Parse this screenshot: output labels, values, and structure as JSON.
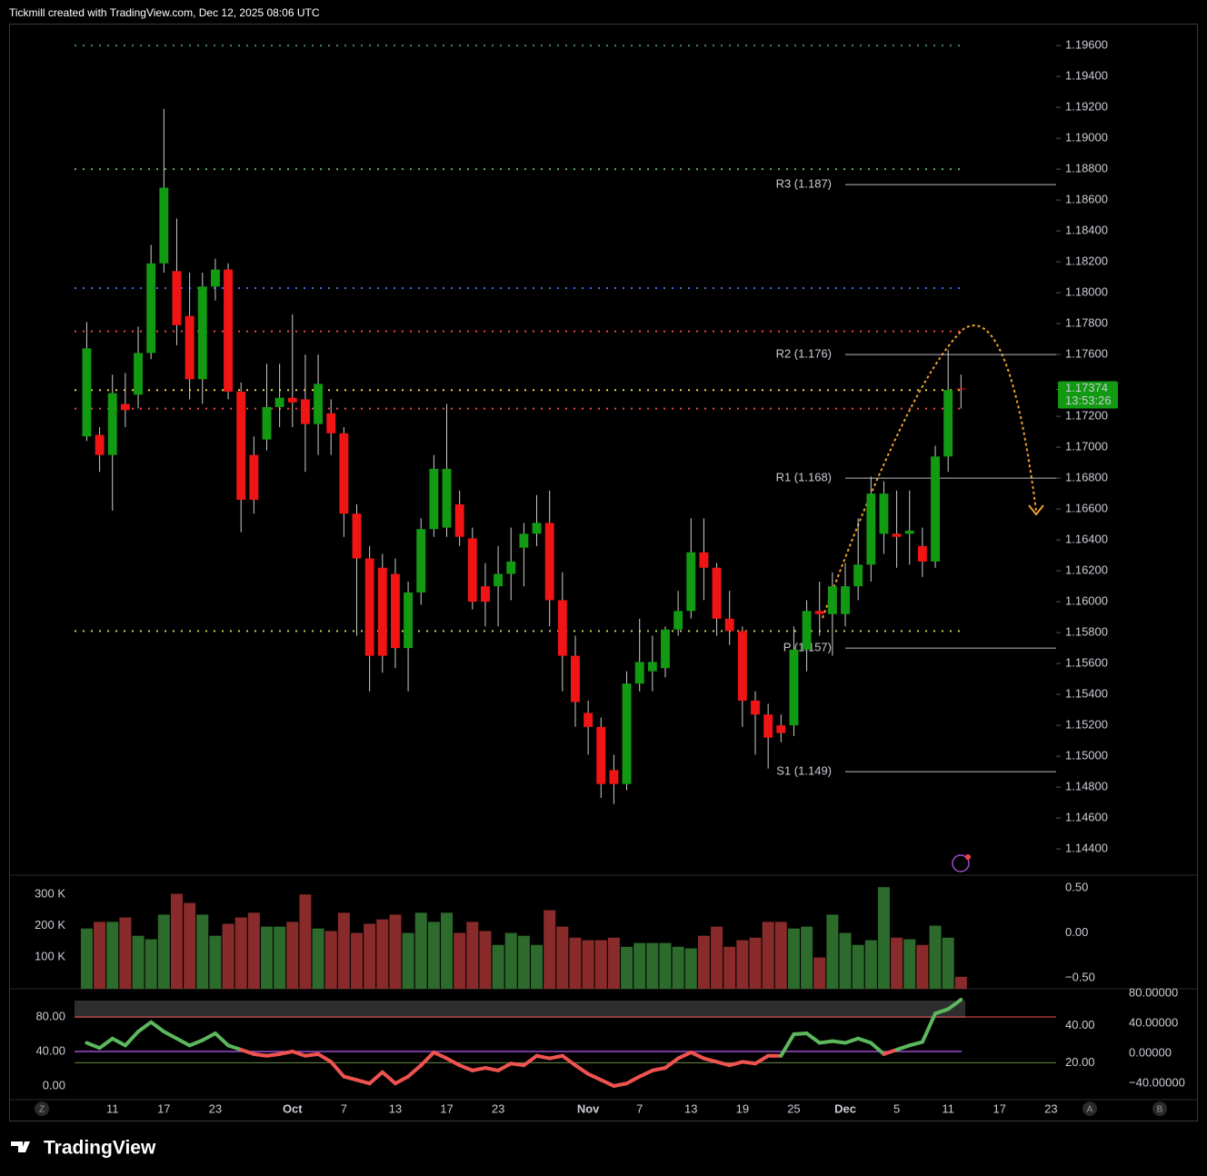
{
  "chart_data": {
    "type": "candlestick",
    "header": "Tickmill created with TradingView.com, Dec 12, 2025 08:06 UTC",
    "brand": "TradingView",
    "buttons": [
      "Z",
      "A",
      "B"
    ],
    "up_color": "#129a12",
    "down_color": "#f01414",
    "open": [
      1.1707,
      1.1708,
      1.1695,
      1.1728,
      1.1734,
      1.1761,
      1.1819,
      1.1814,
      1.1785,
      1.1744,
      1.1804,
      1.1815,
      1.1736,
      1.1695,
      1.1705,
      1.1726,
      1.1732,
      1.1731,
      1.1715,
      1.1722,
      1.1709,
      1.1657,
      1.1628,
      1.1622,
      1.1618,
      1.157,
      1.1606,
      1.1647,
      1.1648,
      1.1663,
      1.1641,
      1.161,
      1.161,
      1.1618,
      1.1635,
      1.1644,
      1.1651,
      1.1601,
      1.1565,
      1.1528,
      1.1519,
      1.1491,
      1.1482,
      1.1547,
      1.1555,
      1.1557,
      1.1582,
      1.1594,
      1.1632,
      1.1622,
      1.1589,
      1.1581,
      1.1536,
      1.1527,
      1.152,
      1.152,
      1.1569,
      1.1594,
      1.1592,
      1.1592,
      1.161,
      1.1624,
      1.1644,
      1.1644,
      1.1644,
      1.1636,
      1.1626,
      1.1694,
      1.1738
    ],
    "high": [
      1.1781,
      1.1713,
      1.1747,
      1.1748,
      1.1778,
      1.1831,
      1.1919,
      1.1848,
      1.1813,
      1.1813,
      1.1822,
      1.1819,
      1.1742,
      1.1707,
      1.1754,
      1.1754,
      1.1786,
      1.176,
      1.176,
      1.1731,
      1.1713,
      1.1663,
      1.1636,
      1.1631,
      1.1628,
      1.1613,
      1.1654,
      1.1695,
      1.1728,
      1.1672,
      1.1648,
      1.1625,
      1.1636,
      1.1648,
      1.1651,
      1.1669,
      1.1672,
      1.1619,
      1.1578,
      1.1536,
      1.1525,
      1.1501,
      1.1555,
      1.1589,
      1.1578,
      1.1584,
      1.1607,
      1.1654,
      1.1654,
      1.1625,
      1.1607,
      1.1584,
      1.1542,
      1.1534,
      1.1527,
      1.1584,
      1.1601,
      1.1613,
      1.1619,
      1.1625,
      1.1654,
      1.1681,
      1.1678,
      1.1672,
      1.1672,
      1.1648,
      1.1701,
      1.1763,
      1.1747
    ],
    "low": [
      1.1704,
      1.1684,
      1.1659,
      1.1713,
      1.1725,
      1.1757,
      1.1813,
      1.1766,
      1.1731,
      1.1728,
      1.1795,
      1.1731,
      1.1645,
      1.1657,
      1.1698,
      1.1713,
      1.1713,
      1.1684,
      1.1695,
      1.1695,
      1.1642,
      1.1578,
      1.1542,
      1.1554,
      1.1557,
      1.1542,
      1.1598,
      1.1642,
      1.1642,
      1.1636,
      1.1595,
      1.1584,
      1.1584,
      1.1601,
      1.161,
      1.1636,
      1.1584,
      1.1542,
      1.1519,
      1.1501,
      1.1473,
      1.1469,
      1.1478,
      1.1542,
      1.1542,
      1.1551,
      1.1578,
      1.1589,
      1.1601,
      1.1578,
      1.1572,
      1.1519,
      1.1501,
      1.1492,
      1.1509,
      1.1513,
      1.1555,
      1.1578,
      1.1565,
      1.1584,
      1.1601,
      1.1613,
      1.1631,
      1.1622,
      1.1624,
      1.1616,
      1.1622,
      1.1684,
      1.1725
    ],
    "close": [
      1.1764,
      1.1695,
      1.1735,
      1.1724,
      1.1761,
      1.1819,
      1.1868,
      1.1779,
      1.1744,
      1.1804,
      1.1815,
      1.1736,
      1.1666,
      1.1666,
      1.1726,
      1.1732,
      1.1729,
      1.1715,
      1.1741,
      1.1709,
      1.1657,
      1.1628,
      1.1565,
      1.1565,
      1.157,
      1.1606,
      1.1647,
      1.1686,
      1.1686,
      1.1642,
      1.16,
      1.16,
      1.1618,
      1.1626,
      1.1644,
      1.1651,
      1.1601,
      1.1565,
      1.1535,
      1.1519,
      1.1482,
      1.1482,
      1.1547,
      1.1561,
      1.1561,
      1.1582,
      1.1594,
      1.1632,
      1.1622,
      1.1589,
      1.1581,
      1.1536,
      1.1527,
      1.1512,
      1.1515,
      1.1569,
      1.1594,
      1.1592,
      1.161,
      1.161,
      1.1624,
      1.167,
      1.167,
      1.1642,
      1.1646,
      1.1626,
      1.1694,
      1.1737,
      1.17374
    ],
    "xlim": [
      -5.9,
      75.4
    ],
    "xticks": [
      {
        "value": 2,
        "label": "11"
      },
      {
        "value": 6,
        "label": "17"
      },
      {
        "value": 10,
        "label": "23"
      },
      {
        "value": 16,
        "label": "Oct"
      },
      {
        "value": 20,
        "label": "7"
      },
      {
        "value": 24,
        "label": "13"
      },
      {
        "value": 28,
        "label": "17"
      },
      {
        "value": 32,
        "label": "23"
      },
      {
        "value": 39,
        "label": "Nov"
      },
      {
        "value": 43,
        "label": "7"
      },
      {
        "value": 47,
        "label": "13"
      },
      {
        "value": 51,
        "label": "19"
      },
      {
        "value": 55,
        "label": "25"
      },
      {
        "value": 59,
        "label": "Dec"
      },
      {
        "value": 63,
        "label": "5"
      },
      {
        "value": 67,
        "label": "11"
      },
      {
        "value": 71,
        "label": "17"
      },
      {
        "value": 75,
        "label": "23"
      }
    ],
    "ylim": [
      1.1423,
      1.1973
    ],
    "yticks": [
      {
        "value": 1.196,
        "label": "1.19600"
      },
      {
        "value": 1.194,
        "label": "1.19400"
      },
      {
        "value": 1.192,
        "label": "1.19200"
      },
      {
        "value": 1.19,
        "label": "1.19000"
      },
      {
        "value": 1.188,
        "label": "1.18800"
      },
      {
        "value": 1.186,
        "label": "1.18600"
      },
      {
        "value": 1.184,
        "label": "1.18400"
      },
      {
        "value": 1.182,
        "label": "1.18200"
      },
      {
        "value": 1.18,
        "label": "1.18000"
      },
      {
        "value": 1.178,
        "label": "1.17800"
      },
      {
        "value": 1.176,
        "label": "1.17600"
      },
      {
        "value": 1.172,
        "label": "1.17200"
      },
      {
        "value": 1.17,
        "label": "1.17000"
      },
      {
        "value": 1.168,
        "label": "1.16800"
      },
      {
        "value": 1.166,
        "label": "1.16600"
      },
      {
        "value": 1.164,
        "label": "1.16400"
      },
      {
        "value": 1.162,
        "label": "1.16200"
      },
      {
        "value": 1.16,
        "label": "1.16000"
      },
      {
        "value": 1.158,
        "label": "1.15800"
      },
      {
        "value": 1.156,
        "label": "1.15600"
      },
      {
        "value": 1.154,
        "label": "1.15400"
      },
      {
        "value": 1.152,
        "label": "1.15200"
      },
      {
        "value": 1.15,
        "label": "1.15000"
      },
      {
        "value": 1.148,
        "label": "1.14800"
      },
      {
        "value": 1.146,
        "label": "1.14600"
      },
      {
        "value": 1.144,
        "label": "1.14400"
      }
    ],
    "levels": [
      {
        "value": 1.196,
        "color": "#2f8f6a"
      },
      {
        "value": 1.188,
        "color": "#5fae5f"
      },
      {
        "value": 1.1803,
        "color": "#3d6cf0"
      },
      {
        "value": 1.1775,
        "color": "#f04545"
      },
      {
        "value": 1.1737,
        "color": "#e8d23a"
      },
      {
        "value": 1.1725,
        "color": "#f04545"
      },
      {
        "value": 1.1581,
        "color": "#a8d84a"
      }
    ],
    "pivots": [
      {
        "label": "R3 (1.187)",
        "value": 1.187
      },
      {
        "label": "R2 (1.176)",
        "value": 1.176
      },
      {
        "label": "R1 (1.168)",
        "value": 1.168
      },
      {
        "label": "P (1.157)",
        "value": 1.157
      },
      {
        "label": "S1 (1.149)",
        "value": 1.149
      }
    ],
    "last_price": 1.17374,
    "countdown": "13:53:26",
    "last_color": "#129a12",
    "volume": {
      "up_color": "#2d6b2d",
      "down_color": "#8a2b2b",
      "values": [
        191,
        212,
        212,
        226,
        168,
        157,
        235,
        301,
        272,
        235,
        168,
        206,
        226,
        241,
        197,
        197,
        212,
        299,
        191,
        183,
        241,
        177,
        206,
        220,
        235,
        177,
        241,
        212,
        241,
        177,
        212,
        183,
        139,
        177,
        168,
        139,
        249,
        197,
        162,
        154,
        154,
        162,
        133,
        145,
        145,
        145,
        133,
        128,
        168,
        197,
        133,
        154,
        162,
        212,
        212,
        191,
        197,
        99,
        235,
        177,
        139,
        154,
        322,
        162,
        157,
        139,
        200,
        162,
        38
      ],
      "ylim": [
        0,
        360
      ],
      "yticks": [
        {
          "value": 300,
          "label": "300 K"
        },
        {
          "value": 200,
          "label": "200 K"
        },
        {
          "value": 100,
          "label": "100 K"
        }
      ],
      "y2lim": [
        -0.62,
        0.64
      ],
      "y2ticks": [
        {
          "value": 0.5,
          "label": "0.50"
        },
        {
          "value": 0,
          "label": "0.00"
        },
        {
          "value": -0.5,
          "label": "−0.50"
        }
      ]
    },
    "oscillator": {
      "up_color": "#5cb85c",
      "down_color": "#ef5350",
      "level_color": "#9c4dcc",
      "values": [
        50,
        44,
        55,
        47,
        63,
        74,
        63,
        55,
        47,
        53,
        61,
        47,
        42,
        37,
        35,
        37,
        40,
        35,
        37,
        28,
        11,
        7,
        3,
        16,
        3,
        11,
        24,
        39,
        32,
        24,
        18,
        21,
        18,
        26,
        24,
        35,
        32,
        35,
        24,
        14,
        7,
        0,
        3,
        11,
        18,
        21,
        32,
        39,
        32,
        28,
        24,
        28,
        26,
        35,
        35,
        60,
        61,
        50,
        52,
        50,
        55,
        50,
        37,
        42,
        47,
        51,
        84,
        89,
        100
      ],
      "ylim": [
        -15.8,
        110.5
      ],
      "yticks": [
        {
          "value": 80,
          "label": "80.00"
        },
        {
          "value": 40,
          "label": "40.00"
        },
        {
          "value": 0,
          "label": "0.00"
        }
      ],
      "y2lim": [
        -62,
        84
      ],
      "y2ticks": [
        {
          "value": 80,
          "label": "80.00000"
        },
        {
          "value": 40,
          "label": "40.00000"
        },
        {
          "value": 0,
          "label": "0.00000"
        },
        {
          "value": -40,
          "label": "−40.00000"
        }
      ],
      "y3lim": [
        0,
        59
      ],
      "y3ticks": [
        {
          "value": 40,
          "label": "40.00"
        },
        {
          "value": 20,
          "label": "20.00"
        }
      ]
    }
  }
}
